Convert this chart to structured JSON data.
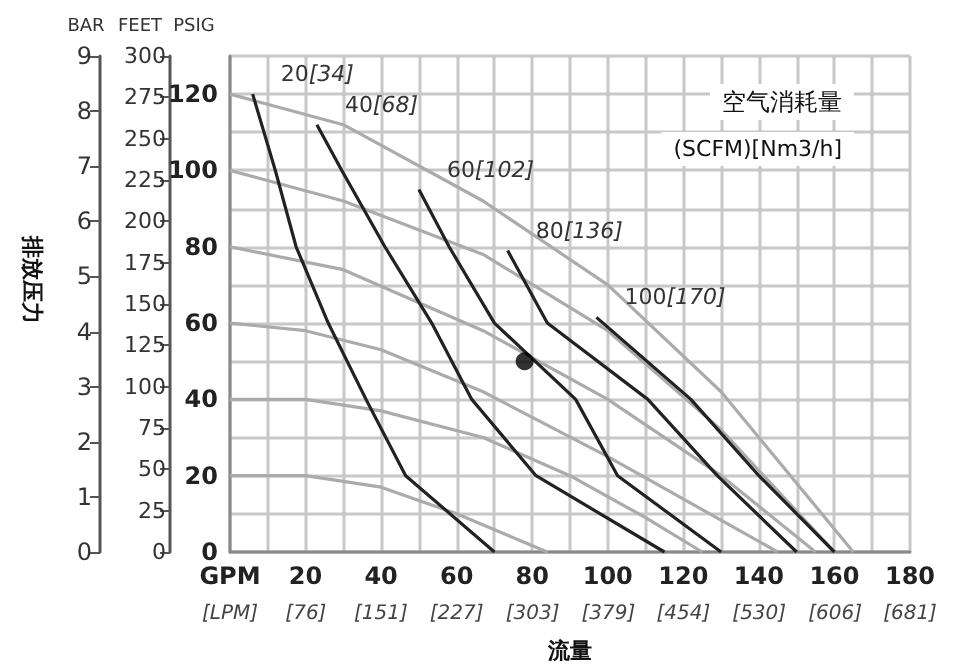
{
  "chart_data": {
    "type": "line",
    "xlabel": "流量",
    "ylabel": "PSIG",
    "xlim": [
      0,
      180
    ],
    "xticks": [
      {
        "value": 0,
        "label": "GPM"
      },
      20,
      40,
      60,
      80,
      100,
      120,
      140,
      160,
      180
    ],
    "x2lim": [
      0,
      681
    ],
    "x2ticks": [
      {
        "value": 0,
        "label": "[LPM]"
      },
      {
        "value": 76,
        "label": "[76]"
      },
      {
        "value": 151,
        "label": "[151]"
      },
      {
        "value": 227,
        "label": "[227]"
      },
      {
        "value": 303,
        "label": "[303]"
      },
      {
        "value": 379,
        "label": "[379]"
      },
      {
        "value": 454,
        "label": "[454]"
      },
      {
        "value": 530,
        "label": "[530]"
      },
      {
        "value": 606,
        "label": "[606]"
      },
      {
        "value": 681,
        "label": "[681]"
      }
    ],
    "ylim": [
      0,
      130
    ],
    "yticks": [
      0,
      20,
      40,
      60,
      80,
      100,
      120
    ],
    "y2label": "FEET",
    "y2lim": [
      0,
      300
    ],
    "y2ticks": [
      0,
      25,
      50,
      75,
      100,
      125,
      150,
      175,
      200,
      225,
      250,
      275,
      300
    ],
    "y3label": "BAR",
    "y3lim": [
      0,
      9
    ],
    "y3ticks": [
      0,
      1,
      2,
      3,
      4,
      5,
      6,
      7,
      8,
      9
    ],
    "grid": true,
    "legend": false,
    "marker": "none",
    "line_style": "solid",
    "annotations": [
      "空气消耗量",
      "(SCFM)[Nm3/h]",
      "排放压力"
    ],
    "series": [
      {
        "color": "#ababab",
        "x": [
          0,
          20,
          40,
          60,
          84
        ],
        "values": [
          20,
          20,
          17,
          10,
          0
        ]
      },
      {
        "color": "#ababab",
        "x": [
          0,
          20,
          40,
          67,
          90,
          110,
          125
        ],
        "values": [
          40,
          40,
          37,
          30,
          20,
          9,
          0
        ]
      },
      {
        "color": "#ababab",
        "x": [
          0,
          20,
          40,
          67,
          100,
          145
        ],
        "values": [
          60,
          58,
          53,
          42,
          25,
          0
        ]
      },
      {
        "color": "#ababab",
        "x": [
          0,
          30,
          67,
          100,
          130,
          155
        ],
        "values": [
          80,
          74,
          58,
          40,
          20,
          0
        ]
      },
      {
        "color": "#ababab",
        "x": [
          0,
          30,
          67,
          100,
          130,
          160
        ],
        "values": [
          100,
          92,
          78,
          58,
          32,
          0
        ]
      },
      {
        "color": "#ababab",
        "x": [
          0,
          30,
          67,
          100,
          130,
          165
        ],
        "values": [
          120,
          112,
          92,
          70,
          42,
          0
        ]
      },
      {
        "name": "20[34]",
        "color": "#222222",
        "x": [
          6,
          12,
          17.5,
          26,
          36,
          46.5,
          70
        ],
        "values": [
          120,
          100,
          80,
          60,
          40,
          20,
          0
        ]
      },
      {
        "name": "40[68]",
        "color": "#222222",
        "x": [
          23,
          29.6,
          41,
          53.4,
          64,
          81,
          115
        ],
        "values": [
          112,
          100,
          80,
          60,
          40,
          20,
          0
        ]
      },
      {
        "name": "60[102]",
        "color": "#222222",
        "x": [
          50,
          58,
          70,
          91.5,
          102.6,
          130
        ],
        "values": [
          95,
          80,
          60,
          40,
          20,
          0
        ]
      },
      {
        "name": "80[136]",
        "color": "#222222",
        "x": [
          73.5,
          84,
          110.6,
          129,
          150
        ],
        "values": [
          79,
          60,
          40,
          20,
          0
        ]
      },
      {
        "name": "100[170]",
        "color": "#222222",
        "x": [
          97,
          122,
          140,
          160
        ],
        "values": [
          61.5,
          40,
          20,
          0
        ]
      },
      {
        "type": "scatter",
        "marker": "circle",
        "color": "#000000",
        "x": [
          78
        ],
        "values": [
          50
        ]
      }
    ]
  }
}
